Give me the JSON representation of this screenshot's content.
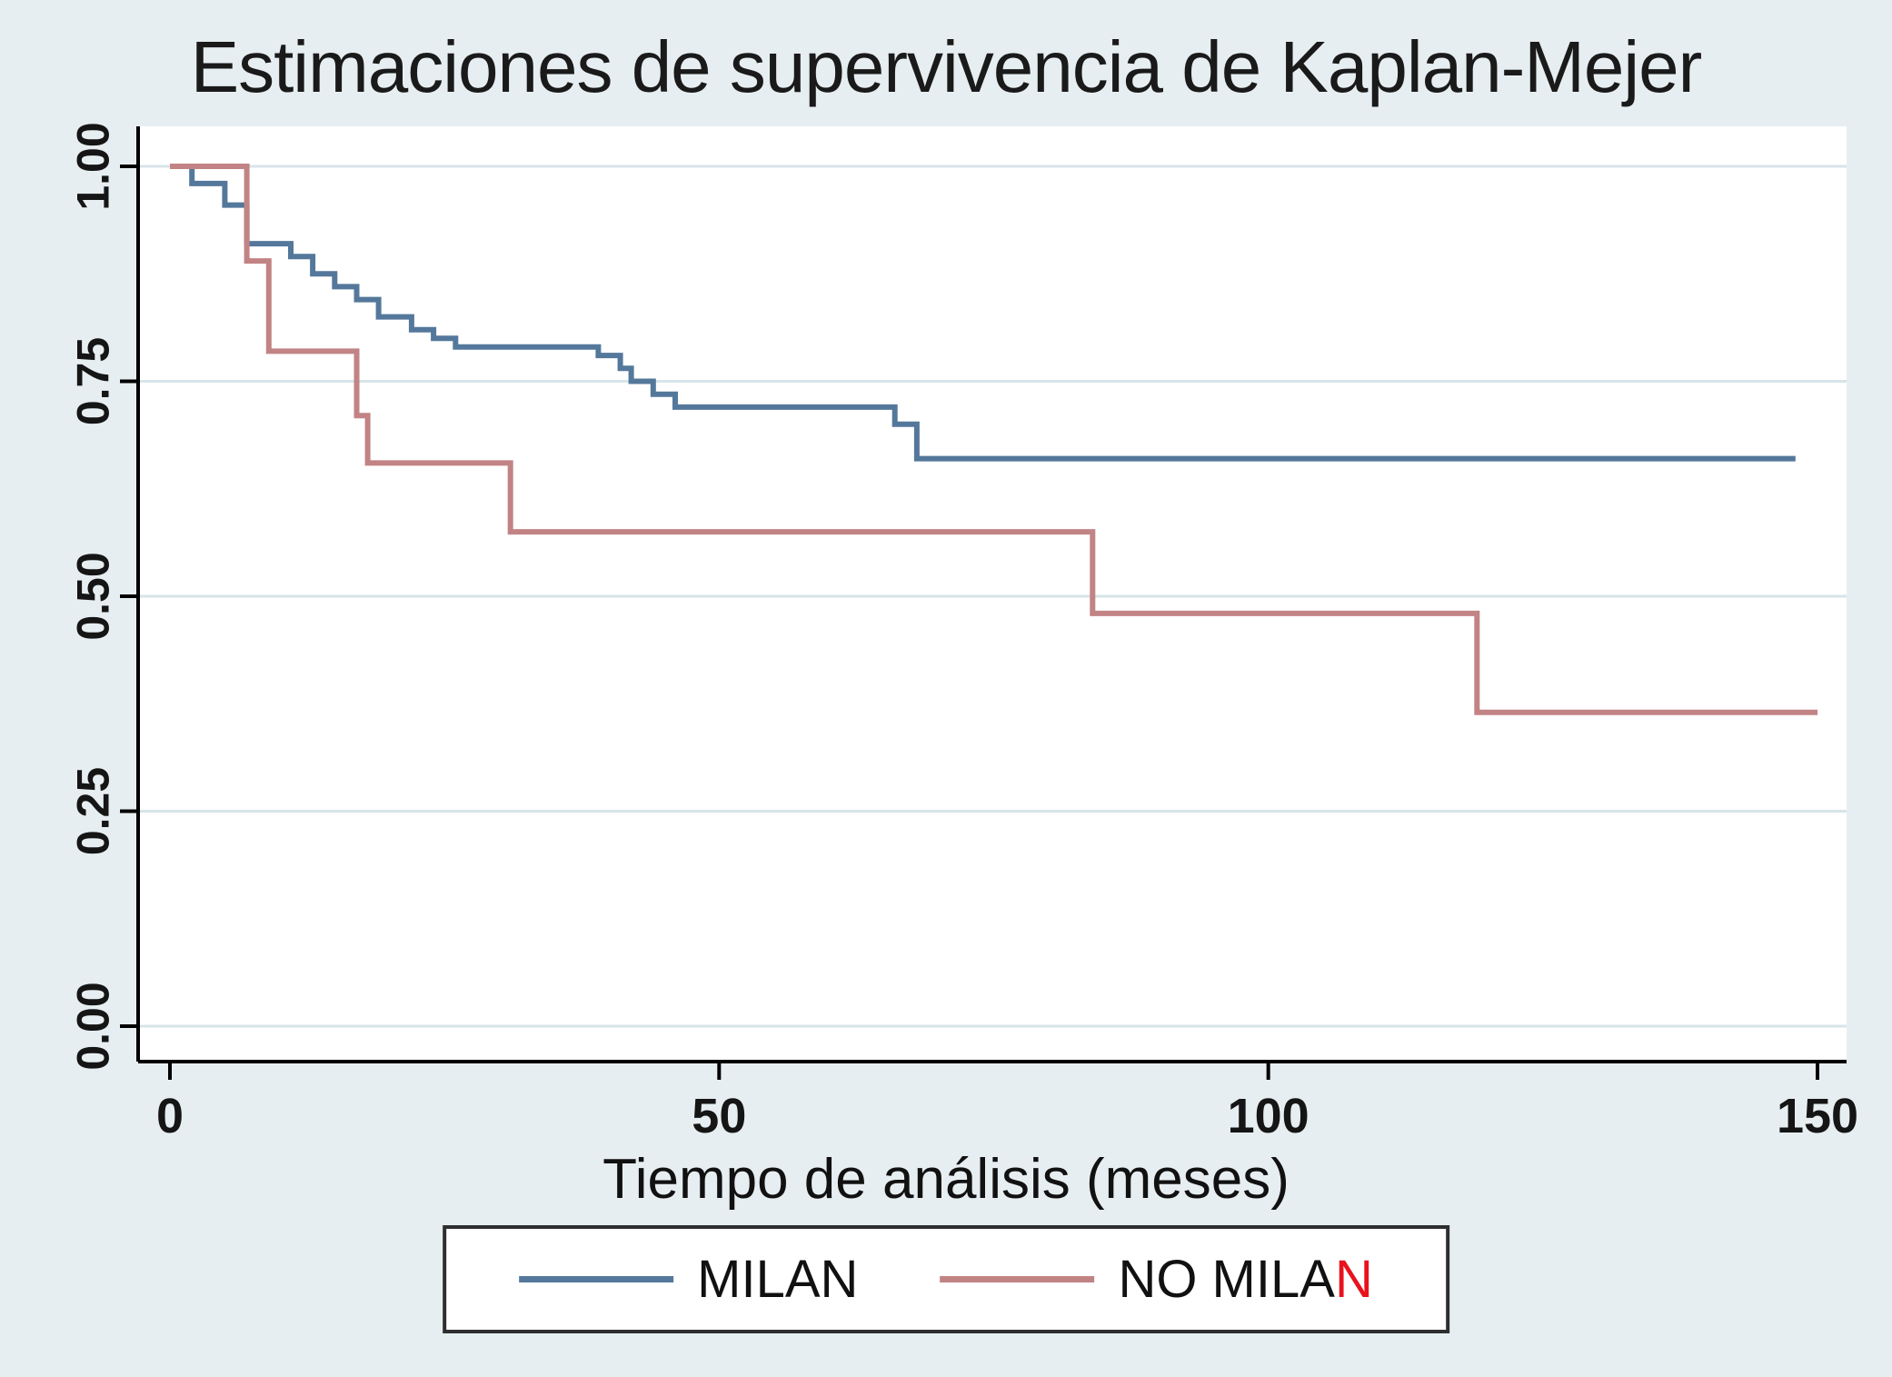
{
  "figure": {
    "background": "#e7eef1"
  },
  "chart_data": {
    "type": "line",
    "subtype": "kaplan-meier-step",
    "title": "Estimaciones de supervivencia de Kaplan-Mejer",
    "xlabel": "Tiempo de análisis (meses)",
    "ylabel": "",
    "xlim": [
      0,
      150
    ],
    "ylim": [
      0,
      1
    ],
    "x_ticks": [
      0,
      50,
      100,
      150
    ],
    "y_ticks": [
      0,
      0.25,
      0.5,
      0.75,
      1
    ],
    "y_tick_labels": [
      "0.00",
      "0.25",
      "0.50",
      "0.75",
      "1.00"
    ],
    "grid": "horizontal",
    "legend_position": "bottom",
    "series": [
      {
        "name": "MILAN",
        "color": "#54789b",
        "steps": [
          [
            0,
            1.0
          ],
          [
            2,
            0.98
          ],
          [
            5,
            0.955
          ],
          [
            7,
            0.91
          ],
          [
            11,
            0.895
          ],
          [
            13,
            0.875
          ],
          [
            15,
            0.86
          ],
          [
            17,
            0.845
          ],
          [
            19,
            0.825
          ],
          [
            22,
            0.81
          ],
          [
            24,
            0.8
          ],
          [
            26,
            0.79
          ],
          [
            39,
            0.78
          ],
          [
            41,
            0.765
          ],
          [
            42,
            0.75
          ],
          [
            44,
            0.735
          ],
          [
            46,
            0.72
          ],
          [
            66,
            0.7
          ],
          [
            68,
            0.66
          ],
          [
            148,
            0.66
          ]
        ]
      },
      {
        "name": "NO MILAN",
        "color": "#c28385",
        "steps": [
          [
            0,
            1.0
          ],
          [
            7,
            0.89
          ],
          [
            9,
            0.785
          ],
          [
            17,
            0.71
          ],
          [
            18,
            0.655
          ],
          [
            31,
            0.575
          ],
          [
            84,
            0.48
          ],
          [
            119,
            0.365
          ],
          [
            150,
            0.365
          ]
        ]
      }
    ],
    "legend": [
      {
        "label": "MILAN",
        "suffix": "",
        "suffix_color": ""
      },
      {
        "label": "NO MILA",
        "suffix": "N",
        "suffix_color": "#e8131c"
      }
    ]
  }
}
